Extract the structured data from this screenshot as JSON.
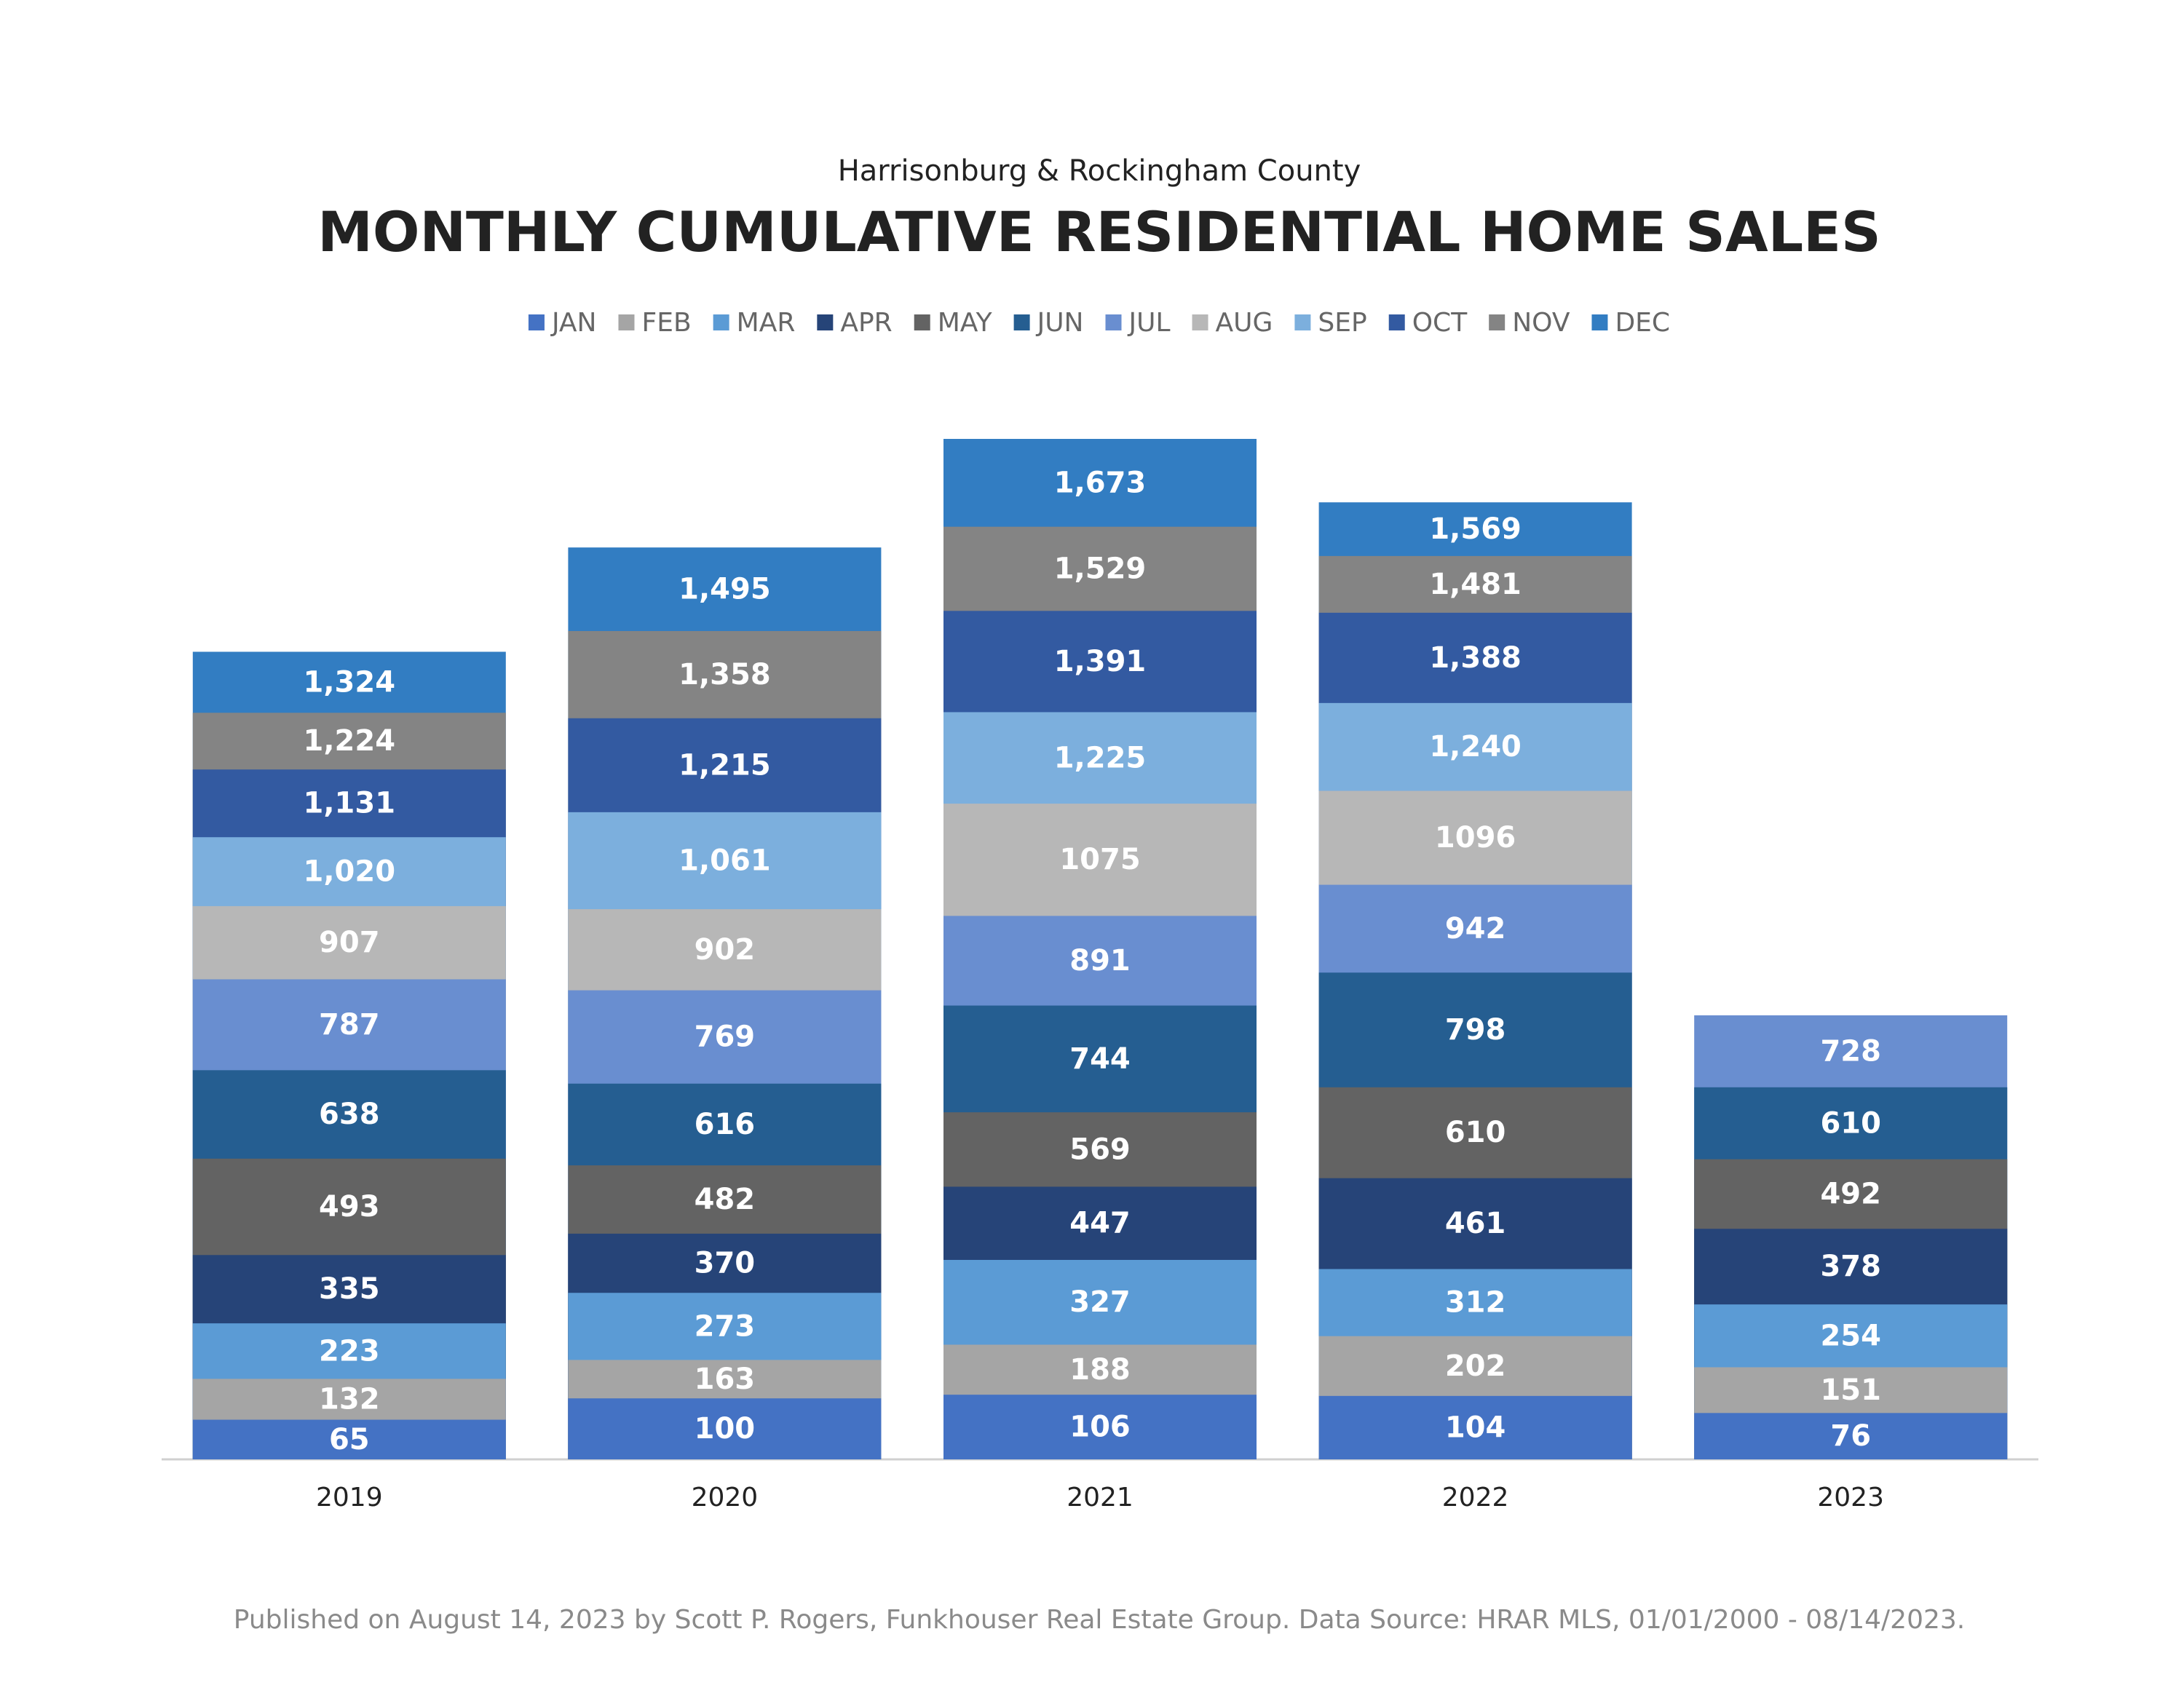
{
  "chart_data": {
    "type": "bar",
    "subtitle": "Harrisonburg & Rockingham County",
    "title": "MONTHLY CUMULATIVE RESIDENTIAL HOME SALES",
    "categories": [
      "2019",
      "2020",
      "2021",
      "2022",
      "2023"
    ],
    "series": [
      {
        "name": "JAN",
        "color": "#4472c4",
        "values": [
          65,
          100,
          106,
          104,
          76
        ]
      },
      {
        "name": "FEB",
        "color": "#a5a5a5",
        "values": [
          132,
          163,
          188,
          202,
          151
        ]
      },
      {
        "name": "MAR",
        "color": "#5b9bd5",
        "values": [
          223,
          273,
          327,
          312,
          254
        ]
      },
      {
        "name": "APR",
        "color": "#264478",
        "values": [
          335,
          370,
          447,
          461,
          378
        ]
      },
      {
        "name": "MAY",
        "color": "#636363",
        "values": [
          493,
          482,
          569,
          610,
          492
        ]
      },
      {
        "name": "JUN",
        "color": "#255e91",
        "values": [
          638,
          616,
          744,
          798,
          610
        ]
      },
      {
        "name": "JUL",
        "color": "#698ed0",
        "values": [
          787,
          769,
          891,
          942,
          728
        ]
      },
      {
        "name": "AUG",
        "color": "#b7b7b7",
        "values": [
          907,
          902,
          1075,
          1096,
          null
        ]
      },
      {
        "name": "SEP",
        "color": "#7cafdd",
        "values": [
          1020,
          1061,
          1225,
          1240,
          null
        ],
        "value_labels": [
          "1,020",
          "1,061",
          "1,225",
          "1,240",
          null
        ]
      },
      {
        "name": "OCT",
        "color": "#335aa1",
        "values": [
          1131,
          1215,
          1391,
          1388,
          null
        ],
        "value_labels": [
          "1,131",
          "1,215",
          "1,391",
          "1,388",
          null
        ]
      },
      {
        "name": "NOV",
        "color": "#848484",
        "values": [
          1224,
          1358,
          1529,
          1481,
          null
        ],
        "value_labels": [
          "1,224",
          "1,358",
          "1,529",
          "1,481",
          null
        ]
      },
      {
        "name": "DEC",
        "color": "#327dc2",
        "values": [
          1324,
          1495,
          1673,
          1569,
          null
        ],
        "value_labels": [
          "1,324",
          "1,495",
          "1,673",
          "1,569",
          null
        ]
      }
    ],
    "footnote": "Published on August 14, 2023 by Scott P. Rogers, Funkhouser Real Estate Group. Data Source: HRAR MLS, 01/01/2000 - 08/14/2023."
  }
}
